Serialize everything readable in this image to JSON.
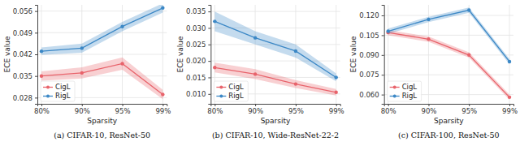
{
  "chart_data": [
    {
      "type": "line",
      "title": "(a) CIFAR-10, ResNet-50",
      "xlabel": "Sparsity",
      "ylabel": "ECE value",
      "categories": [
        "80%",
        "90%",
        "95%",
        "99%"
      ],
      "ylim": [
        0.026,
        0.058
      ],
      "yticks": [
        0.028,
        0.035,
        0.042,
        0.049,
        0.056
      ],
      "grid": true,
      "legend": "lower left",
      "series": [
        {
          "name": "CigL",
          "color": "#e8636b",
          "marker": "circle",
          "values": [
            0.035,
            0.036,
            0.039,
            0.029
          ],
          "std": [
            0.0015,
            0.0018,
            0.002,
            0.0015
          ]
        },
        {
          "name": "RigL",
          "color": "#3c88c6",
          "marker": "circle",
          "values": [
            0.043,
            0.044,
            0.051,
            0.057
          ],
          "std": [
            0.0012,
            0.0015,
            0.0015,
            0.0015
          ]
        }
      ]
    },
    {
      "type": "line",
      "title": "(b) CIFAR-10, Wide-ResNet-22-2",
      "xlabel": "Sparsity",
      "ylabel": "ECE value",
      "categories": [
        "80%",
        "90%",
        "95%",
        "99%"
      ],
      "ylim": [
        0.007,
        0.037
      ],
      "yticks": [
        {
          "value": 0.01,
          "label": "0.010"
        },
        0.015,
        {
          "value": 0.02,
          "label": "0.020"
        },
        0.025,
        {
          "value": 0.03,
          "label": "0.030"
        },
        0.035
      ],
      "grid": true,
      "legend": "lower left",
      "series": [
        {
          "name": "CigL",
          "color": "#e8636b",
          "marker": "circle",
          "values": [
            0.018,
            0.016,
            0.013,
            0.0105
          ],
          "std": [
            0.0015,
            0.0015,
            0.0012,
            0.001
          ]
        },
        {
          "name": "RigL",
          "color": "#3c88c6",
          "marker": "circle",
          "values": [
            0.032,
            0.027,
            0.023,
            0.015
          ],
          "std": [
            0.003,
            0.002,
            0.002,
            0.0012
          ]
        }
      ]
    },
    {
      "type": "line",
      "title": "(c) CIFAR-100, ResNet-50",
      "xlabel": "Sparsity",
      "ylabel": "ECE value",
      "categories": [
        "80%",
        "90%",
        "95%",
        "99%"
      ],
      "ylim": [
        0.053,
        0.128
      ],
      "yticks": [
        {
          "value": 0.06,
          "label": "0.060"
        },
        0.075,
        {
          "value": 0.09,
          "label": "0.090"
        },
        0.105,
        {
          "value": 0.12,
          "label": "0.120"
        }
      ],
      "grid": true,
      "legend": "lower left",
      "series": [
        {
          "name": "CigL",
          "color": "#e8636b",
          "marker": "circle",
          "values": [
            0.107,
            0.102,
            0.09,
            0.058
          ],
          "std": [
            0.002,
            0.002,
            0.002,
            0.002
          ]
        },
        {
          "name": "RigL",
          "color": "#3c88c6",
          "marker": "circle",
          "values": [
            0.108,
            0.117,
            0.124,
            0.085
          ],
          "std": [
            0.002,
            0.002,
            0.002,
            0.002
          ]
        }
      ]
    }
  ]
}
